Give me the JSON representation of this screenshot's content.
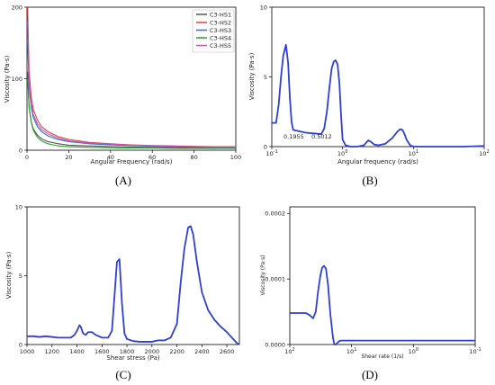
{
  "figure": {
    "panel_labels": [
      "(A)",
      "(B)",
      "(C)",
      "(D)"
    ]
  },
  "chart_data": [
    {
      "type": "line",
      "panel": "A",
      "xlabel": "Angular Frequency (rad/s)",
      "ylabel": "Viscosity (Pa·s)",
      "xlim": [
        0,
        100
      ],
      "ylim": [
        0,
        200
      ],
      "xticks": [
        0,
        20,
        40,
        60,
        80,
        100
      ],
      "yticks": [
        0,
        100,
        200
      ],
      "legend": "top-right",
      "series": [
        {
          "name": "C3-HS1",
          "color": "#555555",
          "x": [
            0.3,
            1,
            2,
            3,
            5,
            7,
            10,
            15,
            20,
            30,
            40,
            50,
            60,
            70,
            80,
            90,
            100
          ],
          "y": [
            110,
            60,
            40,
            30,
            21,
            16,
            12,
            9,
            7,
            6,
            5,
            4.5,
            4,
            4,
            3.5,
            3.5,
            3
          ]
        },
        {
          "name": "C3-HS2",
          "color": "#e0403c",
          "x": [
            0.3,
            1,
            2,
            3,
            5,
            7,
            10,
            15,
            20,
            30,
            40,
            50,
            60,
            70,
            80,
            90,
            100
          ],
          "y": [
            200,
            110,
            75,
            57,
            42,
            33,
            26,
            19,
            15,
            11,
            9,
            7.5,
            6.5,
            6,
            5.5,
            5,
            5
          ]
        },
        {
          "name": "C3-HS3",
          "color": "#1f77b4",
          "x": [
            0.3,
            1,
            2,
            3,
            5,
            7,
            10,
            15,
            20,
            30,
            40,
            50,
            60,
            70,
            80,
            90,
            100
          ],
          "y": [
            150,
            90,
            60,
            46,
            33,
            26,
            20,
            15,
            12,
            9,
            7.5,
            6.5,
            5.5,
            5,
            4.5,
            4,
            4
          ]
        },
        {
          "name": "C3-HS4",
          "color": "#2ca02c",
          "x": [
            0.3,
            1,
            2,
            3,
            5,
            7,
            10,
            15,
            20,
            30,
            40,
            50,
            60,
            70,
            80,
            90,
            100
          ],
          "y": [
            100,
            60,
            40,
            28,
            18,
            13,
            9,
            6,
            5,
            4,
            3.5,
            3,
            3,
            2.5,
            2.5,
            2.5,
            2.5
          ]
        },
        {
          "name": "C3-HS5",
          "color": "#c94fc9",
          "x": [
            0.3,
            1,
            2,
            3,
            5,
            7,
            10,
            15,
            20,
            30,
            40,
            50,
            60,
            70,
            80,
            90,
            100
          ],
          "y": [
            180,
            95,
            65,
            50,
            37,
            29,
            23,
            17,
            13,
            10,
            8.5,
            7,
            6,
            5.5,
            5,
            4.5,
            4.5
          ]
        }
      ]
    },
    {
      "type": "line",
      "panel": "B",
      "xlabel": "Angular frequency (rad/s)",
      "ylabel": "Viscosity (Pa·s)",
      "xscale": "log",
      "xlim": [
        0.1,
        100
      ],
      "ylim": [
        0,
        10
      ],
      "xticks": [
        0.1,
        1,
        10,
        100
      ],
      "xtick_labels": [
        "10",
        "10",
        "10",
        "10"
      ],
      "xtick_exps": [
        "-1",
        "0",
        "1",
        "2"
      ],
      "yticks": [
        0,
        5,
        10
      ],
      "annotations": [
        "0.1955",
        "0.5012"
      ],
      "series": [
        {
          "color": "#2f3fd0",
          "x": [
            0.1,
            0.115,
            0.125,
            0.135,
            0.145,
            0.1585,
            0.17,
            0.18,
            0.19,
            0.2,
            0.3,
            0.5,
            0.55,
            0.6,
            0.65,
            0.7,
            0.75,
            0.794,
            0.85,
            0.9,
            0.95,
            1.0,
            1.1,
            1.3,
            1.6,
            2.0,
            2.3,
            2.5,
            2.8,
            3.2,
            4.0,
            5.0,
            6.0,
            6.5,
            7.0,
            7.5,
            8.0,
            9.0,
            10,
            20,
            50,
            100
          ],
          "y": [
            1.7,
            1.7,
            3.0,
            5.0,
            6.5,
            7.3,
            6.0,
            3.5,
            1.8,
            1.2,
            1.0,
            0.9,
            1.3,
            2.5,
            4.2,
            5.6,
            6.1,
            6.2,
            5.9,
            4.6,
            2.3,
            0.5,
            0.1,
            0.0,
            0.0,
            0.1,
            0.45,
            0.35,
            0.15,
            0.1,
            0.2,
            0.6,
            1.1,
            1.25,
            1.2,
            0.9,
            0.5,
            0.1,
            0.0,
            0.0,
            0.0,
            0.05
          ]
        }
      ]
    },
    {
      "type": "line",
      "panel": "C",
      "xlabel": "Shear stress (Pa)",
      "ylabel": "Viscosity (Pa·s)",
      "xlim": [
        1000,
        2700
      ],
      "ylim": [
        0,
        10
      ],
      "xticks": [
        1000,
        1200,
        1400,
        1600,
        1800,
        2000,
        2200,
        2400,
        2600
      ],
      "yticks": [
        0,
        5,
        10
      ],
      "series": [
        {
          "color": "#2f3fd0",
          "x": [
            1000,
            1050,
            1100,
            1150,
            1200,
            1250,
            1300,
            1350,
            1380,
            1400,
            1420,
            1430,
            1450,
            1470,
            1490,
            1520,
            1550,
            1600,
            1650,
            1680,
            1700,
            1720,
            1740,
            1760,
            1780,
            1800,
            1850,
            1900,
            1950,
            2000,
            2050,
            2100,
            2150,
            2200,
            2230,
            2260,
            2290,
            2310,
            2330,
            2360,
            2400,
            2450,
            2500,
            2550,
            2600,
            2650,
            2680,
            2700
          ],
          "y": [
            0.6,
            0.6,
            0.55,
            0.6,
            0.55,
            0.5,
            0.5,
            0.5,
            0.7,
            1.0,
            1.4,
            1.3,
            0.8,
            0.7,
            0.9,
            0.9,
            0.7,
            0.5,
            0.5,
            1.0,
            3.5,
            6.0,
            6.2,
            3.0,
            0.8,
            0.4,
            0.25,
            0.2,
            0.2,
            0.2,
            0.3,
            0.3,
            0.5,
            1.5,
            4.5,
            7.0,
            8.5,
            8.6,
            8.0,
            6.0,
            3.8,
            2.5,
            1.8,
            1.3,
            0.9,
            0.4,
            0.1,
            0.0
          ]
        }
      ]
    },
    {
      "type": "line",
      "panel": "D",
      "xlabel": "Shear rate (1/s)",
      "ylabel": "Viscosity (Pa·s)",
      "xscale": "log",
      "xaxis_inverted": true,
      "xlim": [
        100,
        0.1
      ],
      "ylim": [
        0,
        0.00021
      ],
      "xticks": [
        100,
        10,
        1,
        0.1
      ],
      "xtick_labels": [
        "10",
        "10",
        "10",
        "10"
      ],
      "xtick_exps": [
        "2",
        "1",
        "0",
        "-1"
      ],
      "yticks": [
        0,
        0.0001,
        0.0002
      ],
      "ytick_labels": [
        "0.0000",
        "0.0001",
        "0.0002"
      ],
      "series": [
        {
          "color": "#2f3fd0",
          "x": [
            100,
            70,
            55,
            48,
            42,
            38,
            35,
            32,
            30,
            28,
            26,
            24,
            22,
            20,
            19,
            18,
            16,
            15,
            10,
            1,
            0.1
          ],
          "y": [
            4.8e-05,
            4.8e-05,
            4.8e-05,
            4.5e-05,
            4e-05,
            5e-05,
            8e-05,
            0.000105,
            0.000117,
            0.00012,
            0.000116,
            9e-05,
            4.5e-05,
            1e-05,
            0.0,
            0.0,
            5e-06,
            6e-06,
            6e-06,
            6e-06,
            6e-06
          ]
        }
      ]
    }
  ]
}
